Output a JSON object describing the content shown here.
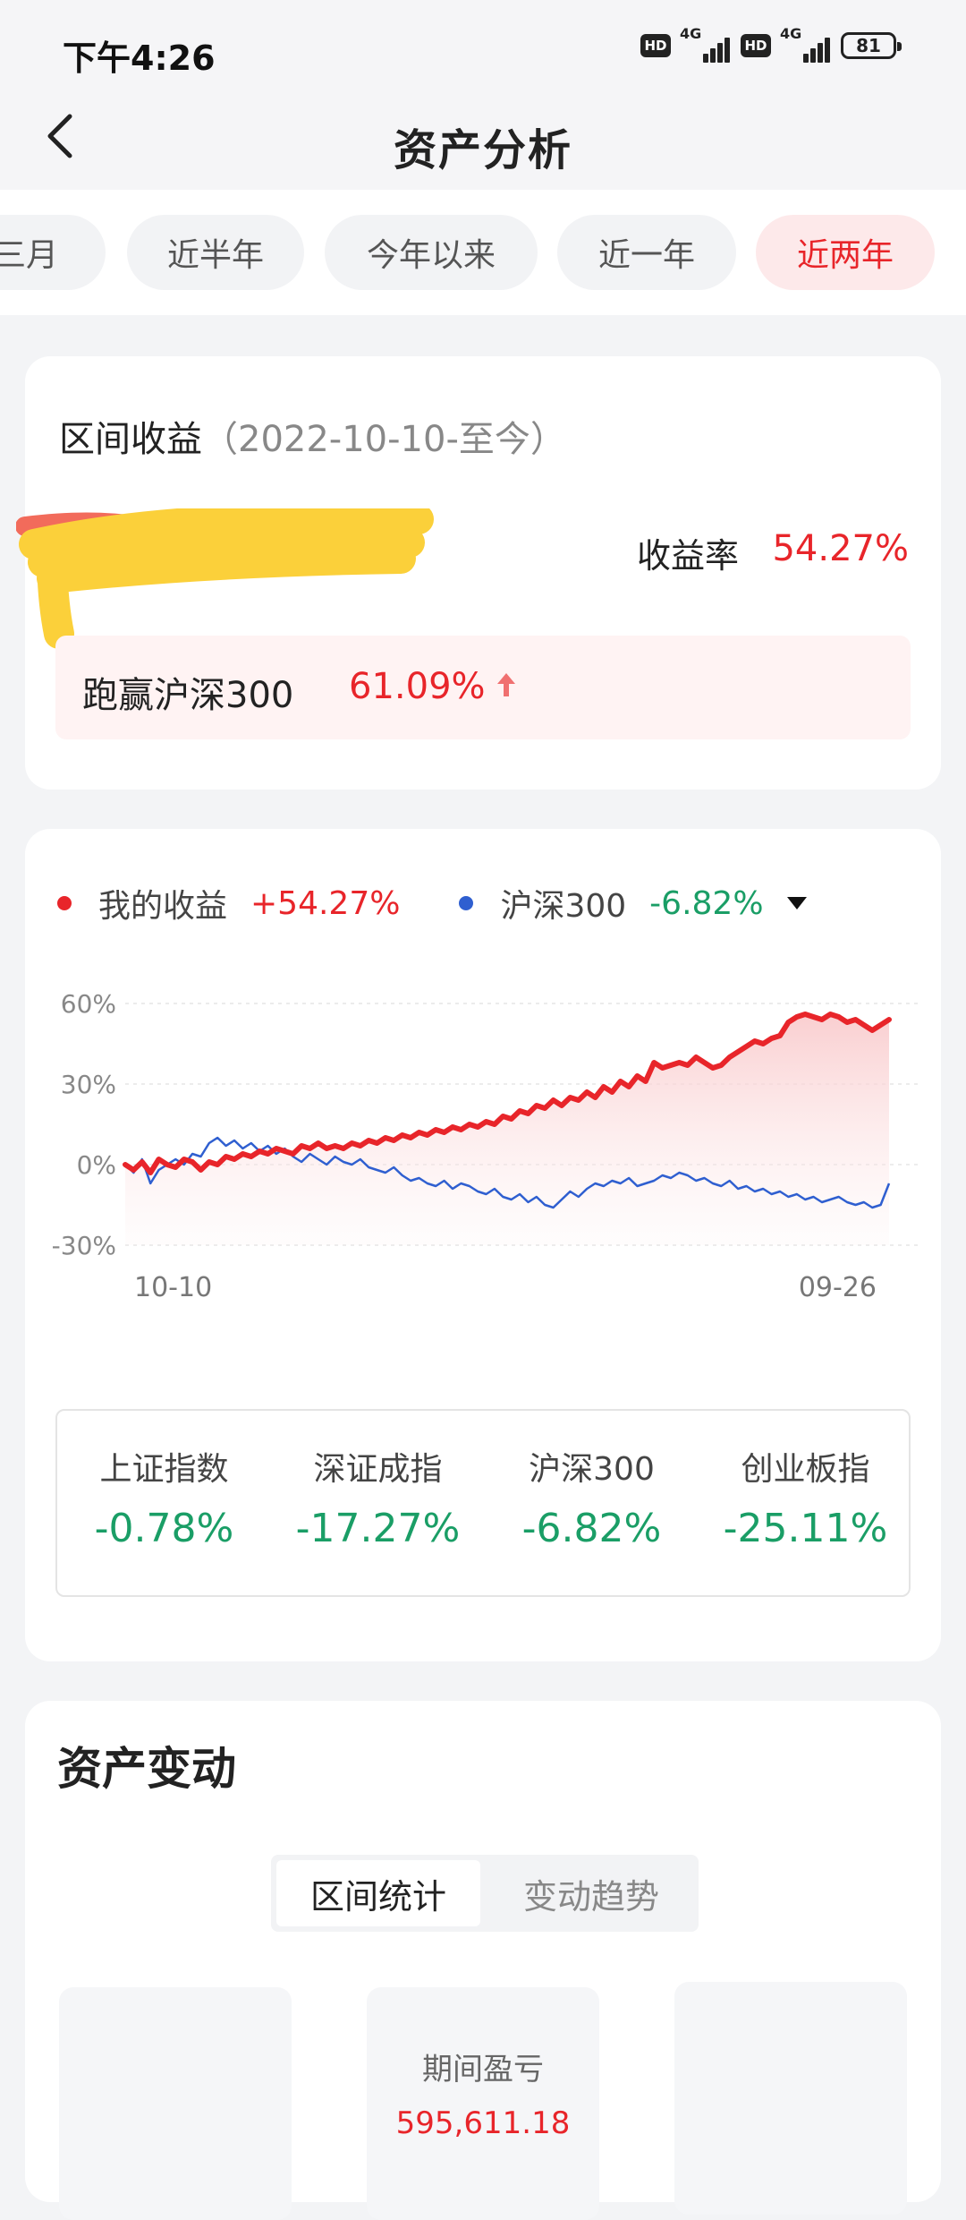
{
  "status": {
    "time": "下午4:26",
    "hd": "HD",
    "net1": "4G",
    "net2": "4G",
    "battery": "81"
  },
  "nav": {
    "title": "资产分析"
  },
  "tabs": [
    {
      "label": "三月",
      "active": false
    },
    {
      "label": "近半年",
      "active": false
    },
    {
      "label": "今年以来",
      "active": false
    },
    {
      "label": "近一年",
      "active": false
    },
    {
      "label": "近两年",
      "active": true
    }
  ],
  "summary": {
    "title": "区间收益",
    "range": "（2022-10-10-至今）",
    "yield_label": "收益率",
    "yield_value": "54.27%",
    "beat_label": "跑赢沪深300",
    "beat_value": "61.09%"
  },
  "legend": {
    "mine_name": "我的收益",
    "mine_value": "+54.27%",
    "bench_name": "沪深300",
    "bench_value": "-6.82%"
  },
  "colors": {
    "red": "#e8252a",
    "blue": "#2f5fd0",
    "green": "#1a9e66"
  },
  "chart_data": {
    "type": "line",
    "y_ticks": [
      "60%",
      "30%",
      "0%",
      "-30%"
    ],
    "ylim": [
      -30,
      60
    ],
    "x_tick_labels": [
      "10-10",
      "09-26"
    ],
    "series": [
      {
        "name": "我的收益",
        "color": "#e8252a",
        "values": [
          0,
          -2,
          1,
          -3,
          2,
          0,
          -1,
          2,
          1,
          -2,
          1,
          0,
          3,
          2,
          4,
          3,
          5,
          4,
          6,
          5,
          4,
          7,
          6,
          8,
          6,
          7,
          6,
          8,
          7,
          9,
          8,
          10,
          9,
          11,
          10,
          12,
          11,
          13,
          12,
          14,
          13,
          15,
          14,
          16,
          15,
          18,
          17,
          20,
          19,
          22,
          21,
          24,
          22,
          25,
          24,
          27,
          25,
          29,
          27,
          31,
          29,
          33,
          31,
          38,
          36,
          37,
          38,
          37,
          40,
          38,
          36,
          37,
          40,
          42,
          44,
          46,
          45,
          47,
          48,
          53,
          55,
          56,
          55,
          54,
          56,
          55,
          53,
          54,
          52,
          50,
          52,
          54
        ]
      },
      {
        "name": "沪深300",
        "color": "#2f5fd0",
        "values": [
          0,
          -3,
          2,
          -7,
          -2,
          0,
          2,
          0,
          4,
          3,
          8,
          10,
          7,
          9,
          6,
          8,
          5,
          7,
          4,
          6,
          3,
          1,
          4,
          2,
          0,
          3,
          1,
          0,
          2,
          -1,
          -2,
          -3,
          -1,
          -4,
          -6,
          -5,
          -7,
          -8,
          -6,
          -9,
          -7,
          -8,
          -10,
          -11,
          -9,
          -12,
          -13,
          -11,
          -14,
          -12,
          -15,
          -16,
          -13,
          -10,
          -12,
          -9,
          -7,
          -8,
          -6,
          -7,
          -5,
          -8,
          -7,
          -6,
          -4,
          -5,
          -3,
          -4,
          -6,
          -5,
          -7,
          -8,
          -6,
          -9,
          -8,
          -10,
          -9,
          -11,
          -10,
          -12,
          -11,
          -13,
          -12,
          -14,
          -13,
          -12,
          -14,
          -15,
          -14,
          -16,
          -15,
          -7
        ]
      }
    ]
  },
  "indices": [
    {
      "name": "上证指数",
      "value": "-0.78%"
    },
    {
      "name": "深证成指",
      "value": "-17.27%"
    },
    {
      "name": "沪深300",
      "value": "-6.82%"
    },
    {
      "name": "创业板指",
      "value": "-25.11%"
    }
  ],
  "asset": {
    "title": "资产变动",
    "seg_on": "区间统计",
    "seg_off": "变动趋势",
    "pnl_label": "期间盈亏",
    "pnl_value": "595,611.18"
  }
}
